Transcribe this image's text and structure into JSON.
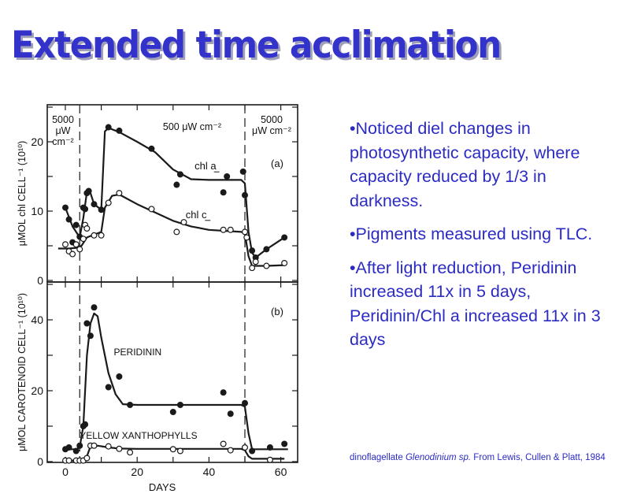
{
  "slide": {
    "title": "Extended time acclimation",
    "bullets": [
      "•Noticed diel changes in photosynthetic capacity, where capacity reduced by 1/3 in darkness.",
      "•Pigments measured using TLC.",
      "•After light reduction, Peridinin increased 11x in 5 days, Peridinin/Chl a increased 11x in 3 days"
    ],
    "citation": {
      "prefix": "dinoflagellate ",
      "species": "Glenodinium sp.",
      "suffix": "  From Lewis, Cullen & Platt, 1984"
    },
    "text_color": "#2b2bc4",
    "title_color": "#3333cc"
  },
  "chart_data": [
    {
      "type": "line",
      "panel_label": "(a)",
      "title": "",
      "xlabel": "",
      "ylabel": "μMOL chl CELL⁻¹ (10¹⁰)",
      "xlim": [
        -3,
        62
      ],
      "ylim": [
        0,
        25
      ],
      "x_ticks": [
        0,
        20,
        40,
        60
      ],
      "y_ticks": [
        0,
        10,
        20
      ],
      "y_tick_labels": [
        "0",
        "10",
        "20"
      ],
      "light_periods": [
        {
          "label_lines": [
            "5000",
            "μW",
            "cm⁻²"
          ],
          "x_range": [
            -3,
            4
          ]
        },
        {
          "label_lines": [
            "500 μW cm⁻²"
          ],
          "x_range": [
            4,
            50
          ]
        },
        {
          "label_lines": [
            "5000",
            "μW cm⁻²"
          ],
          "x_range": [
            50,
            62
          ]
        }
      ],
      "transitions": [
        4,
        50
      ],
      "series": [
        {
          "name": "chl a",
          "marker": "filled",
          "points": [
            [
              0,
              10.5
            ],
            [
              1,
              8.8
            ],
            [
              2,
              5.5
            ],
            [
              3,
              8
            ],
            [
              4,
              6.3
            ],
            [
              5,
              10.5
            ],
            [
              5.5,
              10.3
            ],
            [
              6,
              12.6
            ],
            [
              6.5,
              12.9
            ],
            [
              8,
              11
            ],
            [
              10,
              10.2
            ],
            [
              12,
              22.1
            ],
            [
              15,
              21.6
            ],
            [
              24,
              19
            ],
            [
              31,
              13.8
            ],
            [
              32,
              15.3
            ],
            [
              44,
              12.7
            ],
            [
              45,
              15
            ],
            [
              49.5,
              15.7
            ],
            [
              50,
              12.3
            ],
            [
              52,
              4.3
            ],
            [
              53,
              3.3
            ],
            [
              56,
              4.5
            ],
            [
              61,
              6.2
            ]
          ],
          "curve": [
            [
              0,
              10.5
            ],
            [
              2,
              7.8
            ],
            [
              4,
              6.2
            ],
            [
              5,
              9
            ],
            [
              6,
              12.8
            ],
            [
              7,
              12.6
            ],
            [
              8,
              11
            ],
            [
              10,
              10.2
            ],
            [
              11,
              21.5
            ],
            [
              12,
              22
            ],
            [
              15,
              21.4
            ],
            [
              20,
              20
            ],
            [
              25,
              18.5
            ],
            [
              30,
              16
            ],
            [
              35,
              14.6
            ],
            [
              40,
              14.5
            ],
            [
              49,
              14.5
            ],
            [
              50,
              14
            ],
            [
              51,
              7
            ],
            [
              52,
              4
            ],
            [
              53,
              3.3
            ],
            [
              56,
              4.5
            ],
            [
              61,
              6.2
            ]
          ],
          "curve_label": "chl a"
        },
        {
          "name": "chl c",
          "marker": "open",
          "points": [
            [
              0,
              5.2
            ],
            [
              1,
              4.2
            ],
            [
              2,
              3.8
            ],
            [
              3,
              5.2
            ],
            [
              4,
              4.5
            ],
            [
              5,
              6
            ],
            [
              5.5,
              8
            ],
            [
              6,
              7.5
            ],
            [
              8,
              6.5
            ],
            [
              10,
              6.5
            ],
            [
              12,
              11.2
            ],
            [
              15,
              12.6
            ],
            [
              24,
              10.3
            ],
            [
              31,
              7
            ],
            [
              33,
              8.4
            ],
            [
              44,
              7.3
            ],
            [
              46,
              7.3
            ],
            [
              50,
              7
            ],
            [
              50.5,
              6.2
            ],
            [
              52,
              1.8
            ],
            [
              53,
              2.7
            ],
            [
              56,
              2.1
            ],
            [
              61,
              2.5
            ]
          ],
          "curve": [
            [
              -2,
              4.6
            ],
            [
              1,
              4.6
            ],
            [
              3,
              4.7
            ],
            [
              4.5,
              5
            ],
            [
              6,
              6.2
            ],
            [
              8,
              6.6
            ],
            [
              10,
              7
            ],
            [
              11,
              10.5
            ],
            [
              13,
              12.2
            ],
            [
              15,
              12.4
            ],
            [
              20,
              11
            ],
            [
              25,
              9.8
            ],
            [
              30,
              8.6
            ],
            [
              35,
              7.8
            ],
            [
              40,
              7.3
            ],
            [
              49,
              7
            ],
            [
              50,
              6.8
            ],
            [
              51,
              3.5
            ],
            [
              52,
              2.1
            ],
            [
              56,
              2.1
            ],
            [
              61,
              2.2
            ]
          ],
          "curve_label": "chl c"
        }
      ]
    },
    {
      "type": "line",
      "panel_label": "(b)",
      "title": "",
      "xlabel": "DAYS",
      "ylabel": "μMOL CAROTENOID CELL⁻¹ (10¹⁰)",
      "xlim": [
        -3,
        62
      ],
      "ylim": [
        0,
        50
      ],
      "x_ticks": [
        0,
        20,
        40,
        60
      ],
      "x_tick_labels": [
        "0",
        "20",
        "40",
        "60"
      ],
      "y_ticks": [
        0,
        20,
        40
      ],
      "y_tick_labels": [
        "0",
        "20",
        "40"
      ],
      "transitions": [
        4,
        50
      ],
      "series": [
        {
          "name": "PERIDININ",
          "marker": "filled",
          "points": [
            [
              0,
              3.5
            ],
            [
              1,
              4
            ],
            [
              3,
              3
            ],
            [
              4,
              4.5
            ],
            [
              5,
              10
            ],
            [
              5.5,
              10.5
            ],
            [
              6,
              39
            ],
            [
              7,
              35.5
            ],
            [
              8,
              43.5
            ],
            [
              12,
              21
            ],
            [
              15,
              24
            ],
            [
              18,
              16
            ],
            [
              30,
              14
            ],
            [
              32,
              16
            ],
            [
              44,
              19.5
            ],
            [
              46,
              13.5
            ],
            [
              50,
              16.5
            ],
            [
              52,
              3
            ],
            [
              57,
              4
            ],
            [
              61,
              5
            ]
          ],
          "curve": [
            [
              0,
              3.5
            ],
            [
              3,
              3.5
            ],
            [
              4,
              4
            ],
            [
              5,
              10
            ],
            [
              6,
              30
            ],
            [
              7,
              39
            ],
            [
              8,
              41.8
            ],
            [
              9,
              41
            ],
            [
              10,
              35
            ],
            [
              12,
              25
            ],
            [
              14,
              19
            ],
            [
              16,
              16.2
            ],
            [
              20,
              16
            ],
            [
              30,
              16
            ],
            [
              40,
              16
            ],
            [
              49,
              16
            ],
            [
              50,
              15.5
            ],
            [
              51,
              8
            ],
            [
              52,
              3.5
            ],
            [
              62,
              3.5
            ]
          ],
          "curve_label": "PERIDININ"
        },
        {
          "name": "YELLOW XANTHOPHYLLS",
          "marker": "open",
          "points": [
            [
              0,
              0.3
            ],
            [
              1,
              0.3
            ],
            [
              3,
              0.3
            ],
            [
              4,
              0.3
            ],
            [
              5,
              0.3
            ],
            [
              6,
              1
            ],
            [
              7,
              4.5
            ],
            [
              8,
              4.5
            ],
            [
              12,
              4.3
            ],
            [
              15,
              3.6
            ],
            [
              18,
              2.6
            ],
            [
              30,
              3.5
            ],
            [
              32,
              3
            ],
            [
              44,
              5
            ],
            [
              46,
              3.2
            ],
            [
              50,
              4
            ],
            [
              57,
              0.5
            ]
          ],
          "curve": [
            [
              0,
              0.3
            ],
            [
              5,
              0.3
            ],
            [
              6,
              1.5
            ],
            [
              7,
              4.3
            ],
            [
              9,
              4.5
            ],
            [
              12,
              4
            ],
            [
              15,
              3.7
            ],
            [
              20,
              3.6
            ],
            [
              30,
              3.6
            ],
            [
              40,
              3.6
            ],
            [
              49,
              3.6
            ],
            [
              50,
              3.2
            ],
            [
              51,
              1.5
            ],
            [
              52,
              0.8
            ],
            [
              61,
              0.8
            ]
          ],
          "curve_label": "YELLOW XANTHOPHYLLS"
        }
      ]
    }
  ]
}
